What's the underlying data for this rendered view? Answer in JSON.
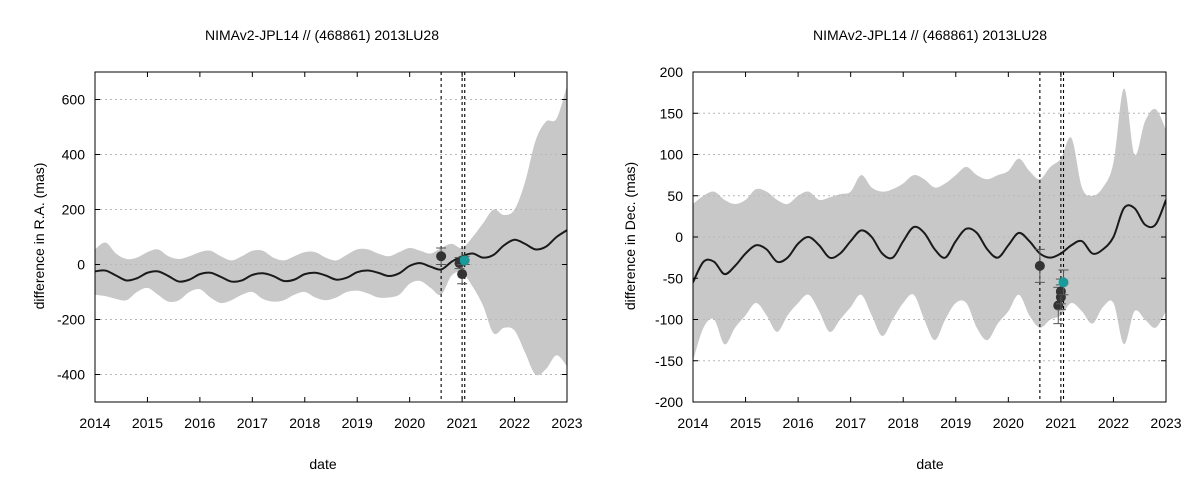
{
  "chart_data": [
    {
      "type": "line",
      "title": "NIMAv2-JPL14 // (468861) 2013LU28",
      "xlabel": "date",
      "ylabel": "difference in R.A. (mas)",
      "xlim": [
        2014,
        2023
      ],
      "ylim": [
        -500,
        700
      ],
      "xticks": [
        2014,
        2015,
        2016,
        2017,
        2018,
        2019,
        2020,
        2021,
        2022,
        2023
      ],
      "yticks": [
        -400,
        -200,
        0,
        200,
        400,
        600
      ],
      "grid": "horizontal dotted",
      "series": [
        {
          "name": "difference curve",
          "x": [
            2014.0,
            2014.2,
            2014.4,
            2014.6,
            2014.8,
            2015.0,
            2015.2,
            2015.4,
            2015.6,
            2015.8,
            2016.0,
            2016.2,
            2016.4,
            2016.6,
            2016.8,
            2017.0,
            2017.2,
            2017.4,
            2017.6,
            2017.8,
            2018.0,
            2018.2,
            2018.4,
            2018.6,
            2018.8,
            2019.0,
            2019.2,
            2019.4,
            2019.6,
            2019.8,
            2020.0,
            2020.2,
            2020.4,
            2020.6,
            2020.8,
            2021.0,
            2021.2,
            2021.4,
            2021.6,
            2021.8,
            2022.0,
            2022.2,
            2022.4,
            2022.6,
            2022.8,
            2023.0
          ],
          "y": [
            -25,
            -22,
            -40,
            -58,
            -50,
            -30,
            -25,
            -42,
            -62,
            -55,
            -35,
            -30,
            -45,
            -62,
            -58,
            -38,
            -32,
            -42,
            -60,
            -55,
            -35,
            -30,
            -40,
            -55,
            -48,
            -28,
            -22,
            -30,
            -42,
            -32,
            -5,
            5,
            -8,
            -18,
            10,
            30,
            40,
            25,
            35,
            70,
            90,
            75,
            55,
            65,
            100,
            125
          ]
        }
      ],
      "uncertainty_band": {
        "x": [
          2014.0,
          2014.2,
          2014.4,
          2014.6,
          2014.8,
          2015.0,
          2015.2,
          2015.4,
          2015.6,
          2015.8,
          2016.0,
          2016.2,
          2016.4,
          2016.6,
          2016.8,
          2017.0,
          2017.2,
          2017.4,
          2017.6,
          2017.8,
          2018.0,
          2018.2,
          2018.4,
          2018.6,
          2018.8,
          2019.0,
          2019.2,
          2019.4,
          2019.6,
          2019.8,
          2020.0,
          2020.2,
          2020.4,
          2020.6,
          2020.8,
          2021.0,
          2021.2,
          2021.4,
          2021.6,
          2021.8,
          2022.0,
          2022.2,
          2022.4,
          2022.6,
          2022.8,
          2023.0
        ],
        "upper": [
          55,
          80,
          40,
          20,
          25,
          45,
          55,
          30,
          20,
          30,
          45,
          50,
          30,
          15,
          30,
          50,
          50,
          25,
          15,
          30,
          45,
          45,
          25,
          15,
          35,
          55,
          55,
          40,
          30,
          45,
          60,
          50,
          40,
          60,
          75,
          60,
          100,
          150,
          200,
          180,
          200,
          300,
          450,
          520,
          530,
          650
        ],
        "lower": [
          -110,
          -115,
          -125,
          -130,
          -100,
          -85,
          -110,
          -135,
          -130,
          -100,
          -90,
          -120,
          -140,
          -130,
          -110,
          -100,
          -125,
          -135,
          -130,
          -110,
          -100,
          -120,
          -130,
          -120,
          -100,
          -95,
          -105,
          -120,
          -120,
          -110,
          -70,
          -60,
          -85,
          -110,
          -40,
          -30,
          -80,
          -150,
          -250,
          -230,
          -240,
          -320,
          -400,
          -380,
          -330,
          -370
        ]
      },
      "vertical_lines_x": [
        2020.6,
        2021.0,
        2021.05
      ],
      "observations": [
        {
          "x": 2020.6,
          "y": 30,
          "err": 30,
          "color": "#333333"
        },
        {
          "x": 2020.95,
          "y": 5,
          "err": 20,
          "color": "#333333"
        },
        {
          "x": 2021.0,
          "y": -35,
          "err": 35,
          "color": "#333333"
        },
        {
          "x": 2021.05,
          "y": 15,
          "err": 15,
          "color": "#1a9a9a"
        }
      ]
    },
    {
      "type": "line",
      "title": "NIMAv2-JPL14 // (468861) 2013LU28",
      "xlabel": "date",
      "ylabel": "difference in Dec. (mas)",
      "xlim": [
        2014,
        2023
      ],
      "ylim": [
        -200,
        200
      ],
      "xticks": [
        2014,
        2015,
        2016,
        2017,
        2018,
        2019,
        2020,
        2021,
        2022,
        2023
      ],
      "yticks": [
        -200,
        -150,
        -100,
        -50,
        0,
        50,
        100,
        150,
        200
      ],
      "grid": "horizontal dotted",
      "series": [
        {
          "name": "difference curve",
          "x": [
            2014.0,
            2014.2,
            2014.4,
            2014.6,
            2014.8,
            2015.0,
            2015.2,
            2015.4,
            2015.6,
            2015.8,
            2016.0,
            2016.2,
            2016.4,
            2016.6,
            2016.8,
            2017.0,
            2017.2,
            2017.4,
            2017.6,
            2017.8,
            2018.0,
            2018.2,
            2018.4,
            2018.6,
            2018.8,
            2019.0,
            2019.2,
            2019.4,
            2019.6,
            2019.8,
            2020.0,
            2020.2,
            2020.4,
            2020.6,
            2020.8,
            2021.0,
            2021.2,
            2021.4,
            2021.6,
            2021.8,
            2022.0,
            2022.2,
            2022.4,
            2022.6,
            2022.8,
            2023.0
          ],
          "y": [
            -55,
            -30,
            -30,
            -45,
            -35,
            -20,
            -10,
            -15,
            -30,
            -25,
            -8,
            0,
            -10,
            -25,
            -20,
            -5,
            8,
            0,
            -20,
            -25,
            -5,
            12,
            5,
            -15,
            -25,
            -5,
            10,
            5,
            -15,
            -25,
            -10,
            5,
            -5,
            -20,
            -25,
            -20,
            -10,
            -5,
            -20,
            -15,
            0,
            35,
            35,
            15,
            15,
            45
          ]
        }
      ],
      "uncertainty_band": {
        "x": [
          2014.0,
          2014.2,
          2014.4,
          2014.6,
          2014.8,
          2015.0,
          2015.2,
          2015.4,
          2015.6,
          2015.8,
          2016.0,
          2016.2,
          2016.4,
          2016.6,
          2016.8,
          2017.0,
          2017.2,
          2017.4,
          2017.6,
          2017.8,
          2018.0,
          2018.2,
          2018.4,
          2018.6,
          2018.8,
          2019.0,
          2019.2,
          2019.4,
          2019.6,
          2019.8,
          2020.0,
          2020.2,
          2020.4,
          2020.6,
          2020.8,
          2021.0,
          2021.2,
          2021.4,
          2021.6,
          2021.8,
          2022.0,
          2022.2,
          2022.4,
          2022.6,
          2022.8,
          2023.0
        ],
        "upper": [
          40,
          50,
          55,
          45,
          40,
          45,
          58,
          55,
          45,
          40,
          50,
          55,
          45,
          48,
          52,
          55,
          75,
          60,
          55,
          58,
          65,
          75,
          70,
          60,
          65,
          75,
          85,
          75,
          70,
          75,
          80,
          95,
          80,
          70,
          85,
          95,
          120,
          60,
          50,
          60,
          90,
          180,
          100,
          140,
          155,
          130
        ],
        "lower": [
          -150,
          -110,
          -100,
          -130,
          -110,
          -95,
          -80,
          -95,
          -115,
          -95,
          -80,
          -70,
          -90,
          -115,
          -100,
          -85,
          -70,
          -95,
          -120,
          -100,
          -80,
          -70,
          -100,
          -125,
          -100,
          -80,
          -80,
          -110,
          -125,
          -105,
          -90,
          -70,
          -95,
          -110,
          -100,
          -95,
          -80,
          -90,
          -105,
          -85,
          -80,
          -130,
          -90,
          -100,
          -110,
          -90
        ]
      },
      "vertical_lines_x": [
        2020.6,
        2021.0,
        2021.05
      ],
      "observations": [
        {
          "x": 2020.6,
          "y": -35,
          "err": 20,
          "color": "#333333"
        },
        {
          "x": 2020.95,
          "y": -83,
          "err": 22,
          "color": "#333333"
        },
        {
          "x": 2021.0,
          "y": -73,
          "err": 15,
          "color": "#333333"
        },
        {
          "x": 2021.0,
          "y": -66,
          "err": 15,
          "color": "#333333"
        },
        {
          "x": 2021.05,
          "y": -55,
          "err": 15,
          "color": "#1a9a9a"
        }
      ]
    }
  ]
}
